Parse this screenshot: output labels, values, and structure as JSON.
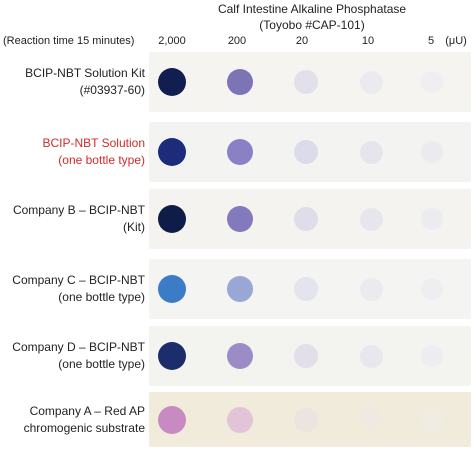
{
  "title": {
    "line1": "Calf Intestine Alkaline Phosphatase",
    "line2": "(Toyobo #CAP-101)"
  },
  "reaction_time": "(Reaction time 15 minutes)",
  "concentrations": [
    "2,000",
    "200",
    "20",
    "10",
    "5"
  ],
  "unit": "(μU)",
  "rows": [
    {
      "line1": "BCIP-NBT Solution Kit",
      "line2": "(#03937-60)",
      "highlight": false,
      "strip": "#f5f4f1",
      "dots": [
        "#121e4f",
        "#7d74b8",
        "#e2e0ea",
        "#ebeaee",
        "#efeef1"
      ]
    },
    {
      "line1": "BCIP-NBT Solution",
      "line2": "(one bottle type)",
      "highlight": true,
      "strip": "#f3f3f1",
      "dots": [
        "#1d2c7a",
        "#8a80c4",
        "#dcdbe9",
        "#e6e5ee",
        "#ebebef"
      ]
    },
    {
      "line1": "Company B – BCIP-NBT",
      "line2": "(Kit)",
      "highlight": false,
      "strip": "#f4f3f0",
      "dots": [
        "#0f1c48",
        "#8379bd",
        "#dedde9",
        "#e7e6ed",
        "#ecebef"
      ]
    },
    {
      "line1": "Company C – BCIP-NBT",
      "line2": "(one bottle type)",
      "highlight": false,
      "strip": "#f4f4f2",
      "dots": [
        "#3c7bc6",
        "#9aa6d6",
        "#e3e4ee",
        "#eaeaef",
        "#eeeef1"
      ]
    },
    {
      "line1": "Company D – BCIP-NBT",
      "line2": "(one bottle type)",
      "highlight": false,
      "strip": "#f3f3f0",
      "dots": [
        "#1b2d6b",
        "#9b8cc8",
        "#e2dfeb",
        "#e9e7ee",
        "#edecf0"
      ]
    },
    {
      "line1": "Company A – Red AP",
      "line2": "chromogenic substrate",
      "highlight": false,
      "strip": "#f1ebdb",
      "dots": [
        "#c88ac2",
        "#e2c3d8",
        "#ece4e0",
        "#efe9e1",
        "#f1ece2"
      ]
    }
  ]
}
